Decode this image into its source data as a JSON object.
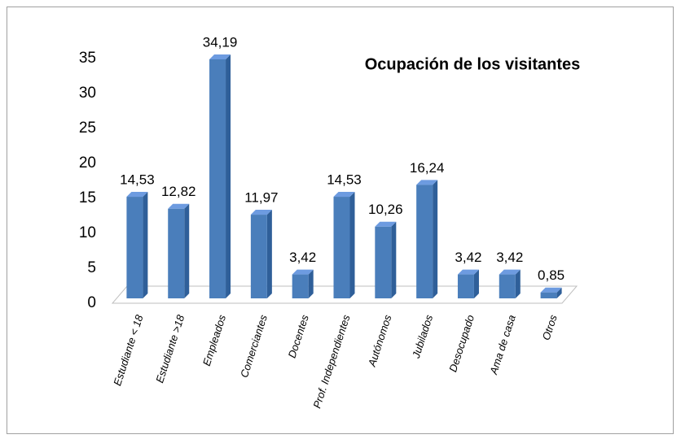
{
  "chart_data": {
    "type": "bar3d",
    "title": "Ocupación de los visitantes",
    "categories": [
      "Estudiante < 18",
      "Estudiante >18",
      "Empleados",
      "Comerciantes",
      "Docentes",
      "Prof. Independientes",
      "Autónomos",
      "Jubilados",
      "Desocupado",
      "Ama de casa",
      "Otros"
    ],
    "values": [
      14.53,
      12.82,
      34.19,
      11.97,
      3.42,
      14.53,
      10.26,
      16.24,
      3.42,
      3.42,
      0.85
    ],
    "value_labels": [
      "14,53",
      "12,82",
      "34,19",
      "11,97",
      "3,42",
      "14,53",
      "10,26",
      "16,24",
      "3,42",
      "3,42",
      "0,85"
    ],
    "color": "#4a7ebb",
    "ylim": [
      0,
      35
    ],
    "yticks": [
      0,
      5,
      10,
      15,
      20,
      25,
      30,
      35
    ]
  }
}
